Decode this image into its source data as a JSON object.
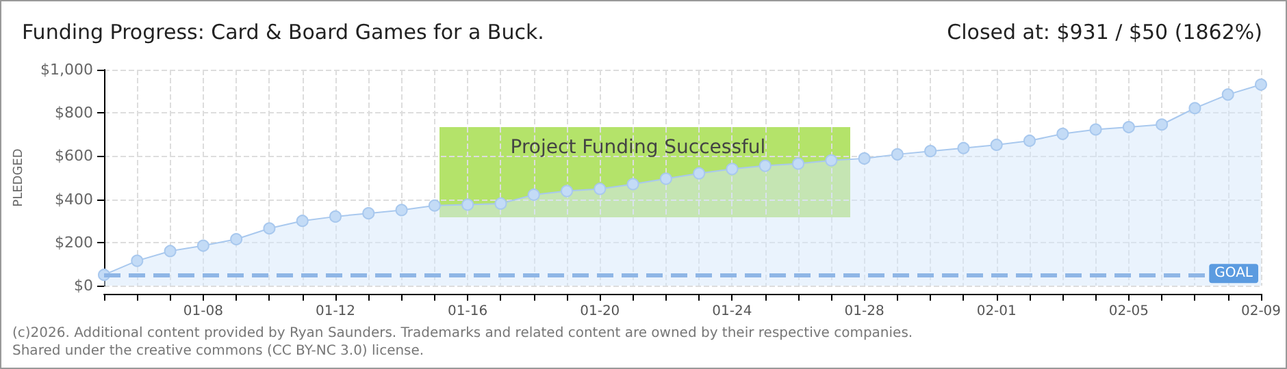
{
  "chart_data": {
    "type": "area",
    "title": "Funding Progress: Card & Board Games for a Buck.",
    "subtitle": "Closed at: $931 / $50 (1862%)",
    "ylabel": "PLEDGED",
    "categories": [
      null,
      null,
      null,
      "01-08",
      null,
      null,
      null,
      "01-12",
      null,
      null,
      null,
      "01-16",
      null,
      null,
      null,
      "01-20",
      null,
      null,
      null,
      "01-24",
      null,
      null,
      null,
      "01-28",
      null,
      null,
      null,
      "02-01",
      null,
      null,
      null,
      "02-05",
      null,
      null,
      null,
      "02-09"
    ],
    "series": [
      {
        "color": "#a8c8ee",
        "values": [
          50,
          115,
          160,
          185,
          215,
          265,
          300,
          320,
          335,
          350,
          371,
          375,
          380,
          421,
          438,
          448,
          470,
          495,
          520,
          540,
          555,
          565,
          580,
          589,
          608,
          623,
          637,
          652,
          671,
          703,
          723,
          734,
          746,
          822,
          885,
          931
        ]
      }
    ],
    "ylim": [
      0,
      1000
    ],
    "yticks": [
      {
        "value": 0,
        "label": "$0"
      },
      {
        "value": 200,
        "label": "$200"
      },
      {
        "value": 400,
        "label": "$400"
      },
      {
        "value": 600,
        "label": "$600"
      },
      {
        "value": 800,
        "label": "$800"
      },
      {
        "value": 1000,
        "label": "$1,000"
      }
    ],
    "ref_lines": [
      {
        "axis": "y",
        "value": 50,
        "label": "GOAL",
        "color": "#8fb6e6",
        "line_style": "dashed"
      }
    ],
    "annotations": [
      "Project Funding Successful",
      "(c)2026. Additional content provided by Ryan Saunders. Trademarks and related content are owned by their respective companies.",
      "Shared under the creative commons (CC BY-NC 3.0) license."
    ],
    "grid": true,
    "marker": "circle",
    "line_style": "solid"
  }
}
